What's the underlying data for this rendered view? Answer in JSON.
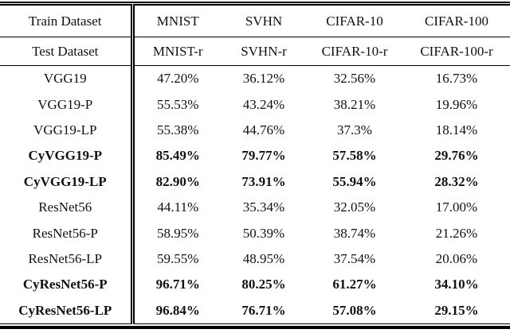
{
  "colors": {
    "text": "#111111",
    "background": "#ffffff",
    "rule": "#000000"
  },
  "chart_data": {
    "type": "table",
    "title": "",
    "header": {
      "train_label": "Train Dataset",
      "train_datasets": [
        "MNIST",
        "SVHN",
        "CIFAR-10",
        "CIFAR-100"
      ],
      "test_label": "Test Dataset",
      "test_datasets": [
        "MNIST-r",
        "SVHN-r",
        "CIFAR-10-r",
        "CIFAR-100-r"
      ]
    },
    "rows": [
      {
        "model": "VGG19",
        "bold": false,
        "values": [
          "47.20%",
          "36.12%",
          "32.56%",
          "16.73%"
        ]
      },
      {
        "model": "VGG19-P",
        "bold": false,
        "values": [
          "55.53%",
          "43.24%",
          "38.21%",
          "19.96%"
        ]
      },
      {
        "model": "VGG19-LP",
        "bold": false,
        "values": [
          "55.38%",
          "44.76%",
          "37.3%",
          "18.14%"
        ]
      },
      {
        "model": "CyVGG19-P",
        "bold": true,
        "values": [
          "85.49%",
          "79.77%",
          "57.58%",
          "29.76%"
        ]
      },
      {
        "model": "CyVGG19-LP",
        "bold": true,
        "values": [
          "82.90%",
          "73.91%",
          "55.94%",
          "28.32%"
        ]
      },
      {
        "model": "ResNet56",
        "bold": false,
        "values": [
          "44.11%",
          "35.34%",
          "32.05%",
          "17.00%"
        ]
      },
      {
        "model": "ResNet56-P",
        "bold": false,
        "values": [
          "58.95%",
          "50.39%",
          "38.74%",
          "21.26%"
        ]
      },
      {
        "model": "ResNet56-LP",
        "bold": false,
        "values": [
          "59.55%",
          "48.95%",
          "37.54%",
          "20.06%"
        ]
      },
      {
        "model": "CyResNet56-P",
        "bold": true,
        "values": [
          "96.71%",
          "80.25%",
          "61.27%",
          "34.10%"
        ]
      },
      {
        "model": "CyResNet56-LP",
        "bold": true,
        "values": [
          "96.84%",
          "76.71%",
          "57.08%",
          "29.15%"
        ]
      }
    ]
  }
}
